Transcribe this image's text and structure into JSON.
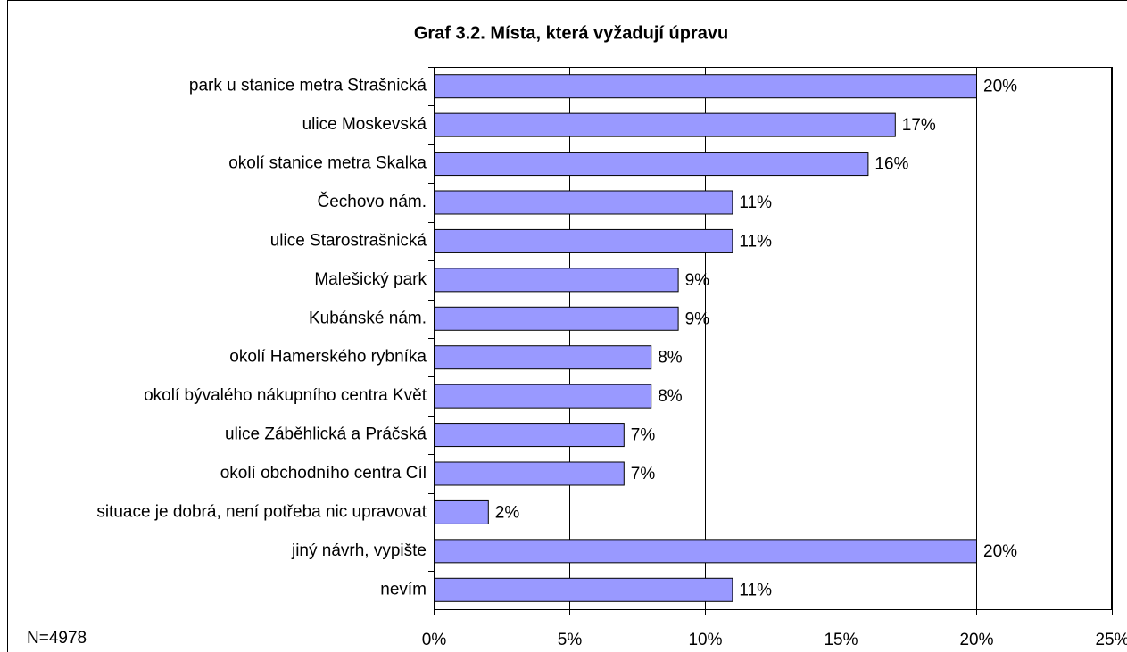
{
  "chart_data": {
    "type": "barh",
    "title": "Graf 3.2. Místa, která vyžadují úpravu",
    "annotation": "N=4978",
    "categories": [
      "park u stanice metra Strašnická",
      "ulice Moskevská",
      "okolí stanice metra Skalka",
      "Čechovo nám.",
      "ulice Starostrašnická",
      "Malešický park",
      "Kubánské nám.",
      "okolí Hamerského rybníka",
      "okolí bývalého nákupního centra Květ",
      "ulice Záběhlická a Práčská",
      "okolí obchodního centra Cíl",
      "situace je dobrá, není potřeba nic upravovat",
      "jiný návrh, vypište",
      "nevím"
    ],
    "values": [
      20,
      17,
      16,
      11,
      11,
      9,
      9,
      8,
      8,
      7,
      7,
      2,
      20,
      11
    ],
    "value_labels": [
      "20%",
      "17%",
      "16%",
      "11%",
      "11%",
      "9%",
      "9%",
      "8%",
      "8%",
      "7%",
      "7%",
      "2%",
      "20%",
      "11%"
    ],
    "color": "#9999ff",
    "xlim": [
      0,
      25
    ],
    "xticks": [
      {
        "value": 0,
        "label": "0%"
      },
      {
        "value": 5,
        "label": "5%"
      },
      {
        "value": 10,
        "label": "10%"
      },
      {
        "value": 15,
        "label": "15%"
      },
      {
        "value": 20,
        "label": "20%"
      },
      {
        "value": 25,
        "label": "25%"
      }
    ],
    "grid": true
  }
}
